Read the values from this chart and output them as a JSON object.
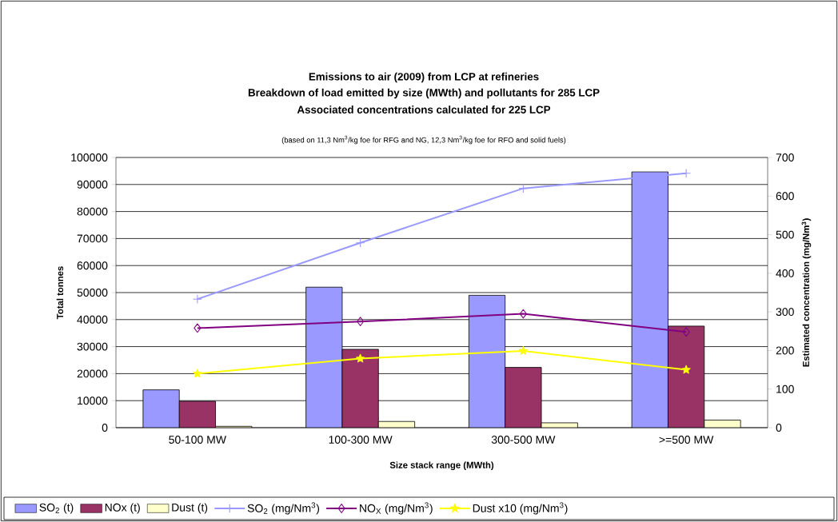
{
  "chart_data": {
    "type": "bar",
    "title": "Emissions to air (2009)  from LCP at refineries",
    "subtitle": "Breakdown of load emitted by size (MWth) and pollutants for 285 LCP",
    "annotations": [
      "Associated concentrations calculated for 225 LCP",
      "(based on 11,3 Nm$^{3}$/kg foe for RFG and NG, 12,3 Nm$^{3}$/kg foe for RFO and solid fuels)"
    ],
    "xlabel": "Size stack range (MWth)",
    "ylabel": "Total tonnes",
    "y2label": "Estimated concentration (mg/Nm$^{3}$)",
    "categories": [
      "50-100 MW",
      "100-300 MW",
      "300-500 MW",
      ">=500 MW"
    ],
    "series": [
      {
        "name": "SO$_{2}$ (t)",
        "type": "bar",
        "color": "#9999ff",
        "values": [
          14000,
          52000,
          49000,
          94700
        ]
      },
      {
        "name": "NOx (t)",
        "type": "bar",
        "color": "#993366",
        "values": [
          9800,
          29000,
          22300,
          37600
        ]
      },
      {
        "name": "Dust (t)",
        "type": "bar",
        "color": "#ffffcc",
        "values": [
          500,
          2300,
          1800,
          2800
        ]
      },
      {
        "name": "SO$_{2}$ (mg/Nm$^{3}$)",
        "type": "line",
        "axis": "y2",
        "color": "#9999ff",
        "marker": "cross",
        "values": [
          333,
          479,
          620,
          659
        ]
      },
      {
        "name": "NO$_{X}$ (mg/Nm$^{3}$)",
        "type": "line",
        "axis": "y2",
        "color": "#800080",
        "marker": "diamond",
        "values": [
          258,
          275,
          295,
          248
        ]
      },
      {
        "name": "Dust x10 (mg/Nm$^{3}$)",
        "type": "line",
        "axis": "y2",
        "color": "#ffff00",
        "marker": "star",
        "values": [
          140,
          179,
          199,
          150
        ]
      }
    ],
    "ylim": [
      0,
      100000
    ],
    "yticks": [
      0,
      10000,
      20000,
      30000,
      40000,
      50000,
      60000,
      70000,
      80000,
      90000,
      100000
    ],
    "y2lim": [
      0,
      700
    ],
    "y2ticks": [
      0,
      100,
      200,
      300,
      400,
      500,
      600,
      700
    ],
    "grid": "y",
    "legend": "bottom"
  }
}
